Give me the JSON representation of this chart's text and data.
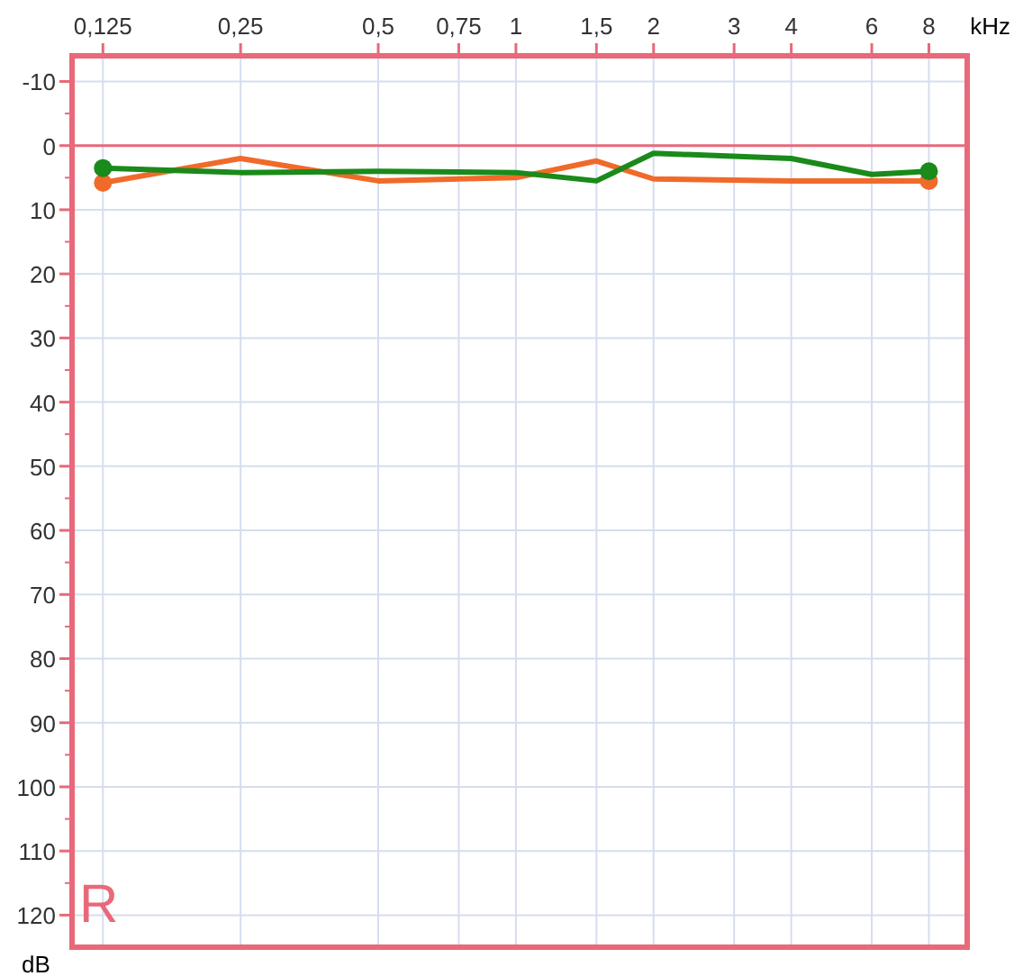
{
  "chart_data": {
    "type": "line",
    "xlabel": "kHz",
    "ylabel": "dB",
    "log": "x",
    "xlim": [
      0.107,
      9.7
    ],
    "ylim": [
      125,
      -14
    ],
    "xticks": [
      {
        "value": 0.125,
        "label": "0,125"
      },
      {
        "value": 0.25,
        "label": "0,25"
      },
      {
        "value": 0.5,
        "label": "0,5"
      },
      {
        "value": 0.75,
        "label": "0,75"
      },
      1,
      {
        "value": 1.5,
        "label": "1,5"
      },
      2,
      3,
      4,
      6,
      8
    ],
    "yticks": [
      -10,
      0,
      10,
      20,
      30,
      40,
      50,
      60,
      70,
      80,
      90,
      100,
      110,
      120
    ],
    "grid": true,
    "line_style": "solid",
    "ref_lines": [
      {
        "axis": "y",
        "value": 0,
        "color": "#e8697a"
      }
    ],
    "annotations": [
      "R"
    ],
    "series": [
      {
        "color": "#f06a2a",
        "x": [
          0.125,
          0.25,
          0.5,
          1,
          1.5,
          2,
          4,
          8
        ],
        "values": [
          5.8,
          2,
          5.5,
          5,
          2.4,
          5.2,
          5.5,
          5.5
        ]
      },
      {
        "color": "#1a8a1a",
        "x": [
          0.125,
          0.25,
          0.5,
          1,
          1.5,
          2,
          4,
          6,
          8
        ],
        "values": [
          3.5,
          4.2,
          4,
          4.2,
          5.5,
          1.2,
          2,
          4.5,
          4
        ]
      },
      {
        "type": "scatter",
        "color": "#f06a2a",
        "x": [
          0.125,
          8
        ],
        "values": [
          5.8,
          5.5
        ]
      },
      {
        "type": "scatter",
        "color": "#1a8a1a",
        "x": [
          0.125,
          8
        ],
        "values": [
          3.5,
          4
        ]
      }
    ]
  }
}
